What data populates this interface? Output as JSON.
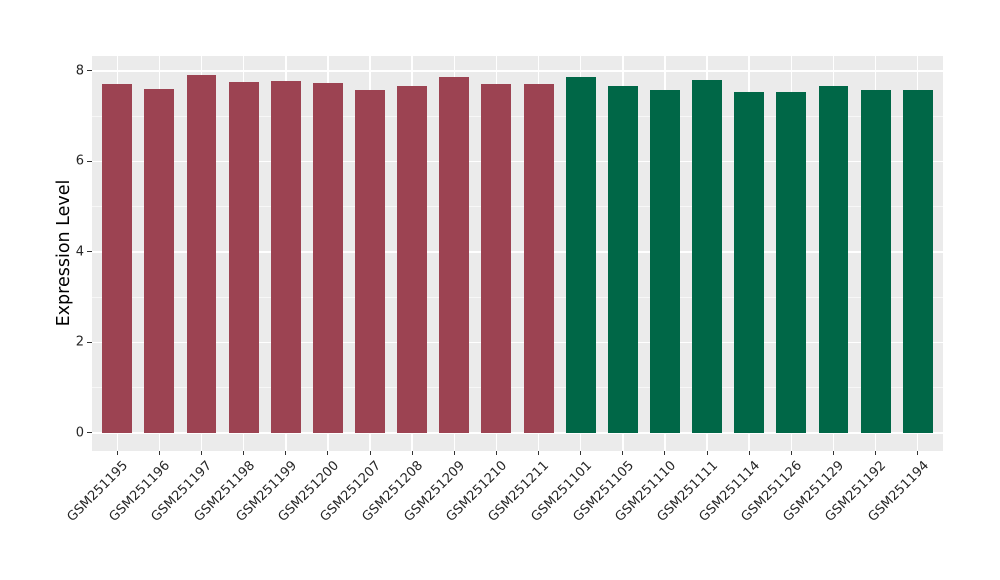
{
  "chart_data": {
    "type": "bar",
    "title": "",
    "xlabel": "",
    "ylabel": "Expression Level",
    "categories": [
      "GSM251195",
      "GSM251196",
      "GSM251197",
      "GSM251198",
      "GSM251199",
      "GSM251200",
      "GSM251207",
      "GSM251208",
      "GSM251209",
      "GSM251210",
      "GSM251211",
      "GSM251101",
      "GSM251105",
      "GSM251110",
      "GSM251111",
      "GSM251114",
      "GSM251126",
      "GSM251129",
      "GSM251192",
      "GSM251194"
    ],
    "values": [
      7.72,
      7.61,
      7.92,
      7.76,
      7.77,
      7.74,
      7.58,
      7.66,
      7.87,
      7.71,
      7.72,
      7.87,
      7.66,
      7.57,
      7.81,
      7.54,
      7.54,
      7.66,
      7.58,
      7.58
    ],
    "bar_group": [
      0,
      0,
      0,
      0,
      0,
      0,
      0,
      0,
      0,
      0,
      0,
      1,
      1,
      1,
      1,
      1,
      1,
      1,
      1,
      1
    ],
    "group_colors": [
      "#9C4352",
      "#006747"
    ],
    "yticks": [
      0,
      2,
      4,
      6,
      8
    ],
    "yticklabels": [
      "0",
      "2",
      "4",
      "6",
      "8"
    ],
    "minor_yticks": [
      1,
      3,
      5,
      7
    ],
    "ylim": [
      -0.4,
      8.33
    ],
    "x_padding": 0.6,
    "bar_width_fraction": 0.71,
    "x_tick_label_rotation_deg": 45,
    "grid": true,
    "legend_position": "none",
    "panel_bg": "#EBEBEB",
    "grid_color": "#FFFFFF",
    "tick_color": "#333333",
    "tick_label_color": "#262626"
  }
}
